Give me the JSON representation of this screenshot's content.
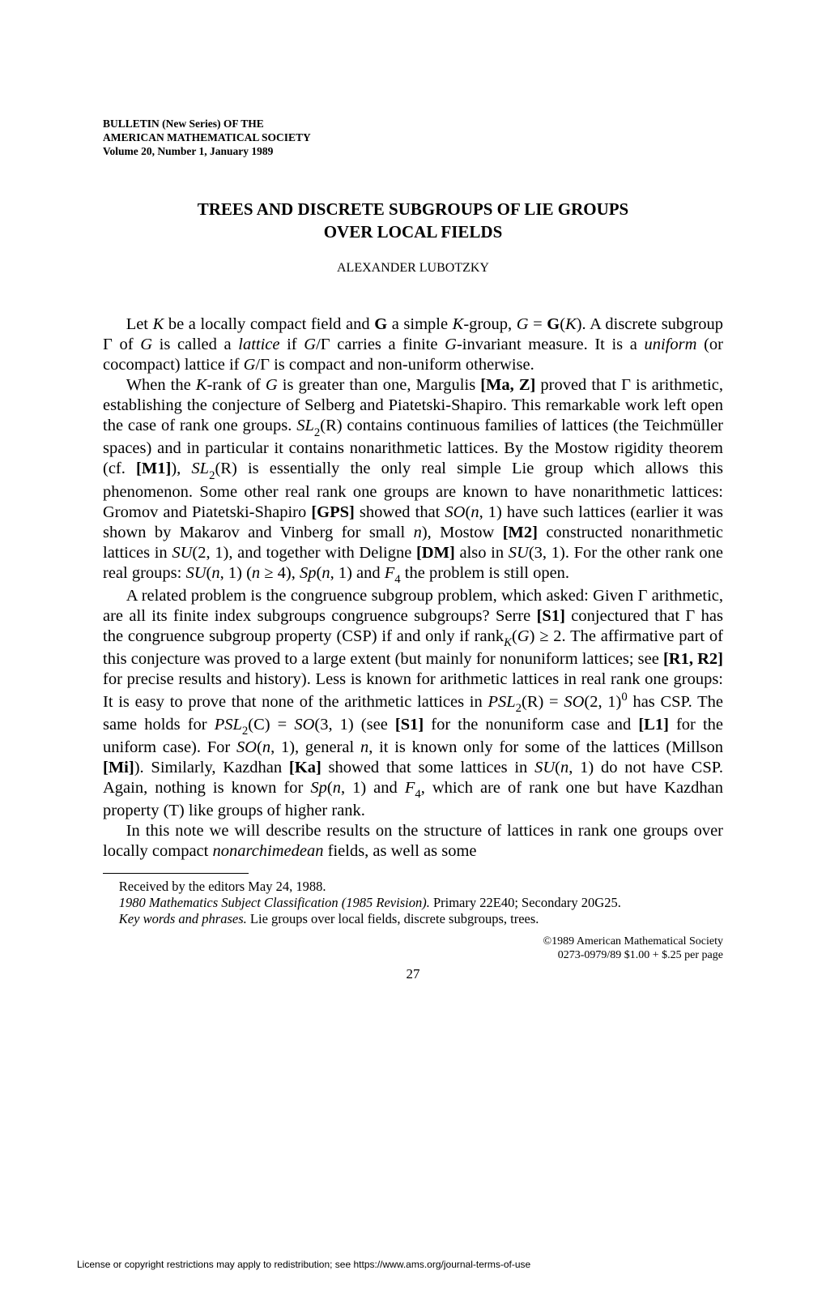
{
  "journal": {
    "line1": "BULLETIN (New Series) OF THE",
    "line2": "AMERICAN MATHEMATICAL SOCIETY",
    "line3": "Volume 20, Number 1, January 1989"
  },
  "title": {
    "line1": "TREES AND DISCRETE SUBGROUPS OF LIE GROUPS",
    "line2": "OVER LOCAL FIELDS"
  },
  "author": "ALEXANDER LUBOTZKY",
  "footnotes": {
    "received": "Received by the editors May 24, 1988.",
    "msc_label": "1980 Mathematics Subject Classification (1985 Revision).",
    "msc_codes": " Primary 22E40; Secondary 20G25.",
    "keywords_label": "Key words and phrases.",
    "keywords": " Lie groups over local fields, discrete subgroups, trees."
  },
  "copyright": {
    "line1": "©1989 American Mathematical Society",
    "line2": "0273-0979/89 $1.00 + $.25 per page"
  },
  "page_number": "27",
  "license": "License or copyright restrictions may apply to redistribution; see https://www.ams.org/journal-terms-of-use",
  "symbols": {
    "K": "K",
    "G_bold": "G",
    "G": "G",
    "Gamma": "Γ",
    "R": "R",
    "C": "C",
    "geq": "≥"
  }
}
